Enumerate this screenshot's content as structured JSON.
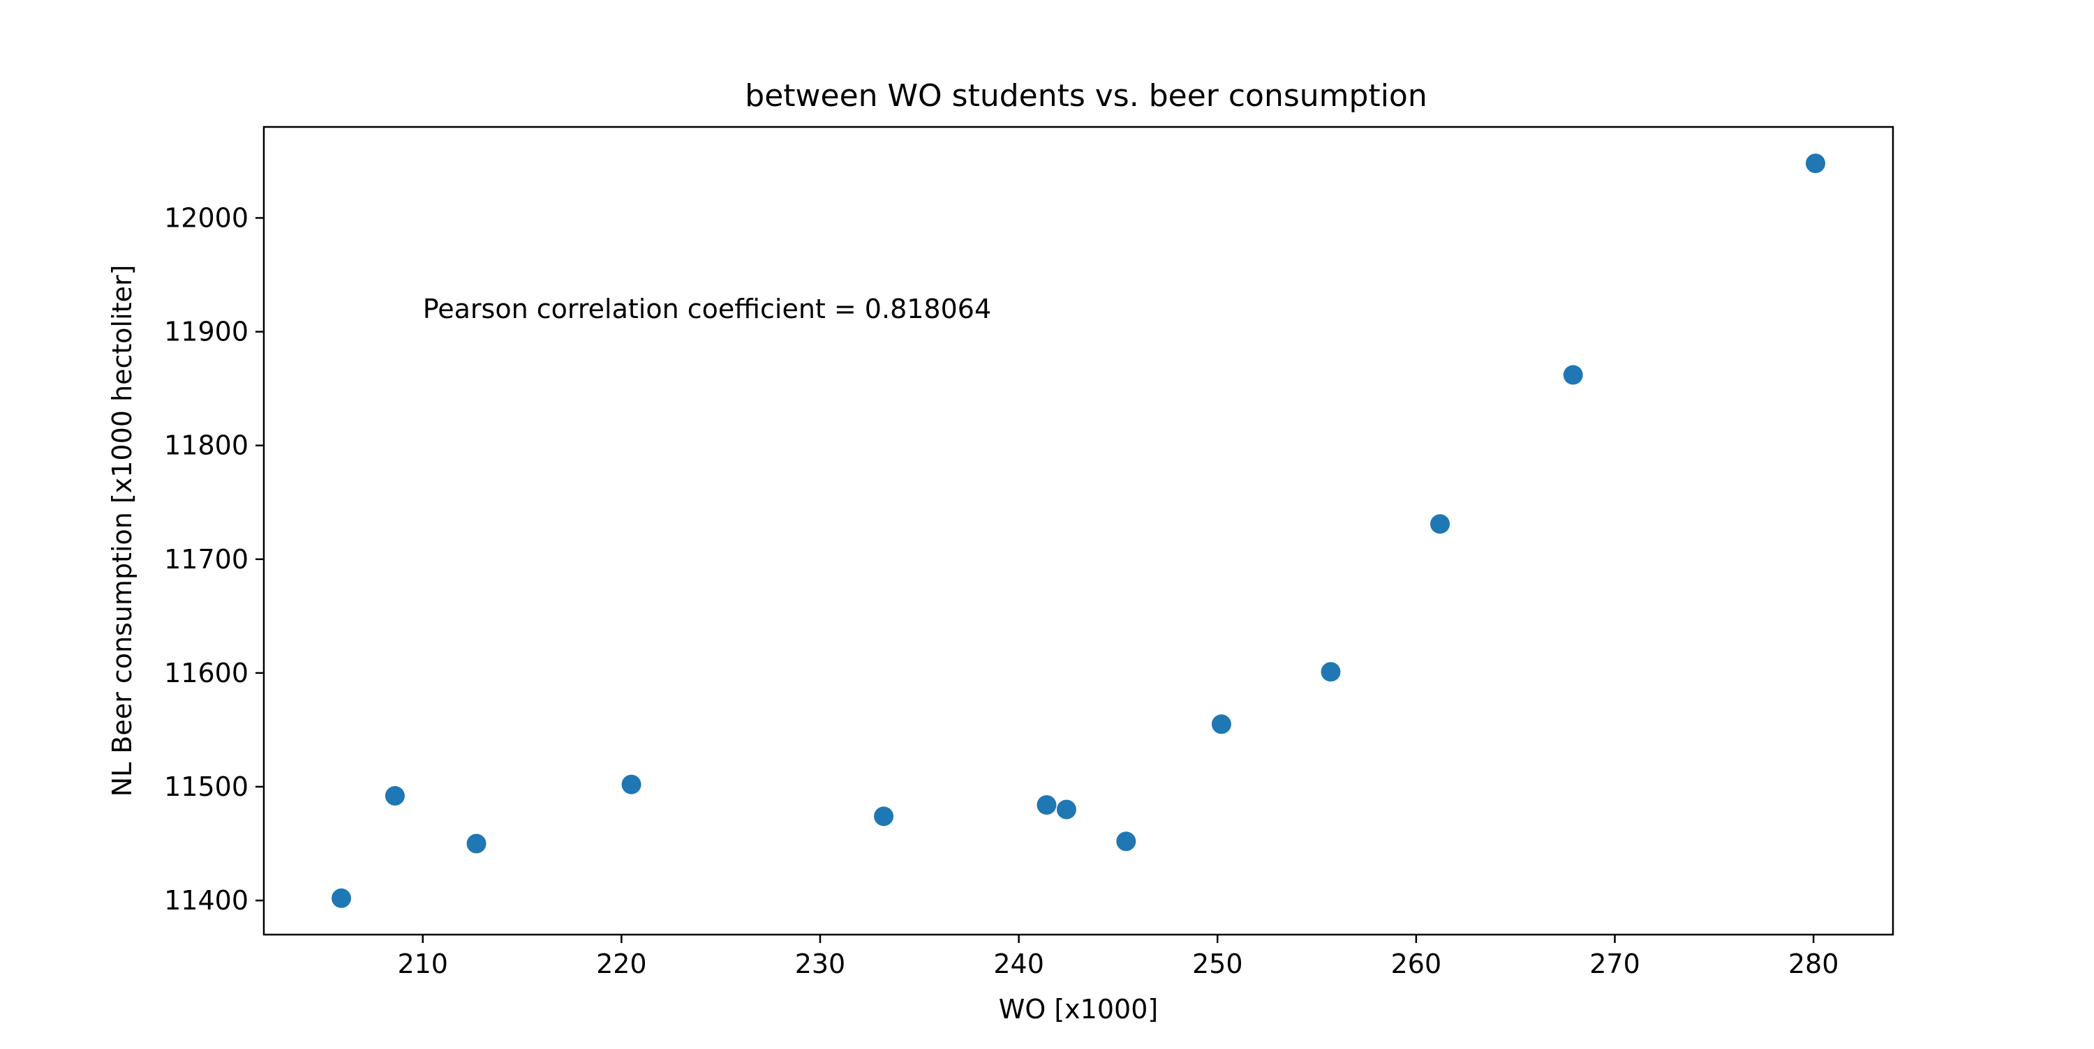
{
  "chart_data": {
    "type": "scatter",
    "title": "between WO students vs. beer consumption",
    "xlabel": "WO [x1000]",
    "ylabel": "NL Beer consumption [x1000 hectoliter]",
    "xlim": [
      202,
      284
    ],
    "ylim": [
      11370,
      12080
    ],
    "xticks": [
      210,
      220,
      230,
      240,
      250,
      260,
      270,
      280
    ],
    "yticks": [
      11400,
      11500,
      11600,
      11700,
      11800,
      11900,
      12000
    ],
    "grid": false,
    "annotation": {
      "text": "Pearson correlation coefficient = 0.818064",
      "x": 210,
      "y": 11920
    },
    "series": [
      {
        "color": "#1f77b4",
        "points": [
          {
            "x": 205.9,
            "y": 11402
          },
          {
            "x": 208.6,
            "y": 11492
          },
          {
            "x": 212.7,
            "y": 11450
          },
          {
            "x": 220.5,
            "y": 11502
          },
          {
            "x": 233.2,
            "y": 11474
          },
          {
            "x": 241.4,
            "y": 11484
          },
          {
            "x": 242.4,
            "y": 11480
          },
          {
            "x": 245.4,
            "y": 11452
          },
          {
            "x": 250.2,
            "y": 11555
          },
          {
            "x": 255.7,
            "y": 11601
          },
          {
            "x": 261.2,
            "y": 11731
          },
          {
            "x": 267.9,
            "y": 11862
          },
          {
            "x": 280.1,
            "y": 12048
          }
        ]
      }
    ]
  }
}
